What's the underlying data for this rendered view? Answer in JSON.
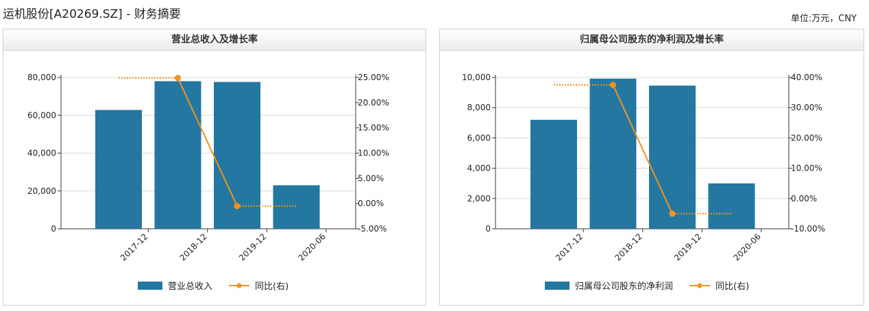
{
  "page": {
    "title": "运机股份[A20269.SZ] - 财务摘要",
    "unit": "单位:万元，CNY"
  },
  "colors": {
    "bar": "#2477a1",
    "line": "#f3921e",
    "axis": "#333333",
    "grid": "#d8d8d8"
  },
  "chart_data": [
    {
      "type": "bar",
      "title": "营业总收入及增长率",
      "categories": [
        "2017-12",
        "2018-12",
        "2019-12",
        "2020-06"
      ],
      "series": [
        {
          "name": "营业总收入",
          "type": "bar",
          "axis": "left",
          "values": [
            62800,
            78000,
            77600,
            23000
          ]
        },
        {
          "name": "同比(右)",
          "type": "line",
          "axis": "right",
          "values": [
            null,
            24.9,
            -0.5,
            null
          ]
        }
      ],
      "left_axis": {
        "min": 0,
        "max": 80000,
        "step": 20000,
        "ticks": [
          "0",
          "20,000",
          "40,000",
          "60,000",
          "80,000"
        ]
      },
      "right_axis": {
        "min": -5,
        "max": 25,
        "step": 5,
        "ticks": [
          "-5.00%",
          "0.00%",
          "5.00%",
          "10.00%",
          "15.00%",
          "20.00%",
          "25.00%"
        ]
      },
      "grid": true,
      "legend": "bottom"
    },
    {
      "type": "bar",
      "title": "归属母公司股东的净利润及增长率",
      "categories": [
        "2017-12",
        "2018-12",
        "2019-12",
        "2020-06"
      ],
      "series": [
        {
          "name": "归属母公司股东的净利润",
          "type": "bar",
          "axis": "left",
          "values": [
            7200,
            9920,
            9460,
            3000
          ]
        },
        {
          "name": "同比(右)",
          "type": "line",
          "axis": "right",
          "values": [
            null,
            37.5,
            -5.0,
            null
          ]
        }
      ],
      "left_axis": {
        "min": 0,
        "max": 10000,
        "step": 2000,
        "ticks": [
          "0",
          "2,000",
          "4,000",
          "6,000",
          "8,000",
          "10,000"
        ]
      },
      "right_axis": {
        "min": -10,
        "max": 40,
        "step": 10,
        "ticks": [
          "-10.00%",
          "0.00%",
          "10.00%",
          "20.00%",
          "30.00%",
          "40.00%"
        ]
      },
      "grid": true,
      "legend": "bottom"
    }
  ]
}
